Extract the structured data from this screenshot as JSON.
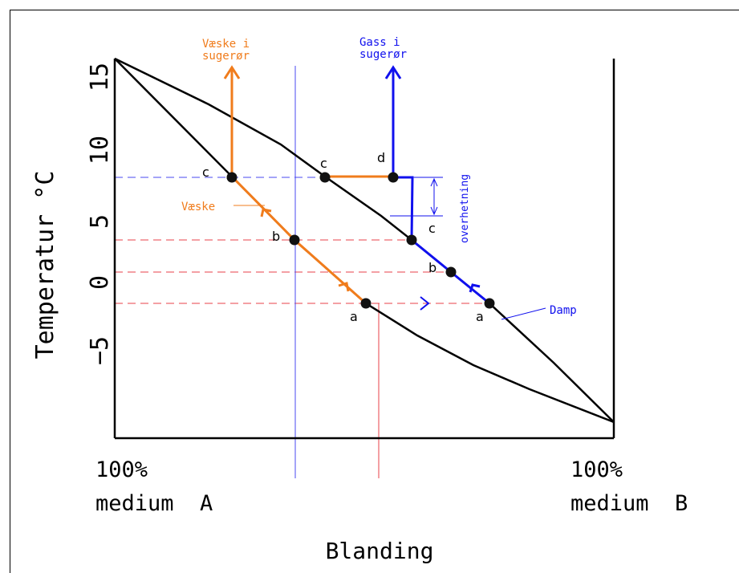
{
  "axis": {
    "ylabel": "Temperatur °C",
    "xlabel": "Blanding",
    "yticks": [
      "15",
      "10",
      "5",
      "0",
      "−5"
    ],
    "left_label": [
      "100%",
      "medium  A"
    ],
    "right_label": [
      "100%",
      "medium  B"
    ]
  },
  "phases": {
    "liquid_out": [
      "Væske i",
      "sugerør"
    ],
    "gas_out": [
      "Gass i",
      "sugerør"
    ],
    "liquid": "Væske",
    "vapor": "Damp",
    "superheat": "overhetning"
  },
  "points": {
    "liquid": {
      "a": "a",
      "b": "b",
      "c": "c"
    },
    "vapor": {
      "a": "a",
      "b": "b",
      "c": "c",
      "d": "d"
    },
    "tie_c": "c"
  },
  "colors": {
    "liquid": "#f07c1c",
    "vapor": "#1010ee",
    "guide_red": "#e8424a",
    "guide_blue": "#4a4af0",
    "axis": "#000000"
  }
}
